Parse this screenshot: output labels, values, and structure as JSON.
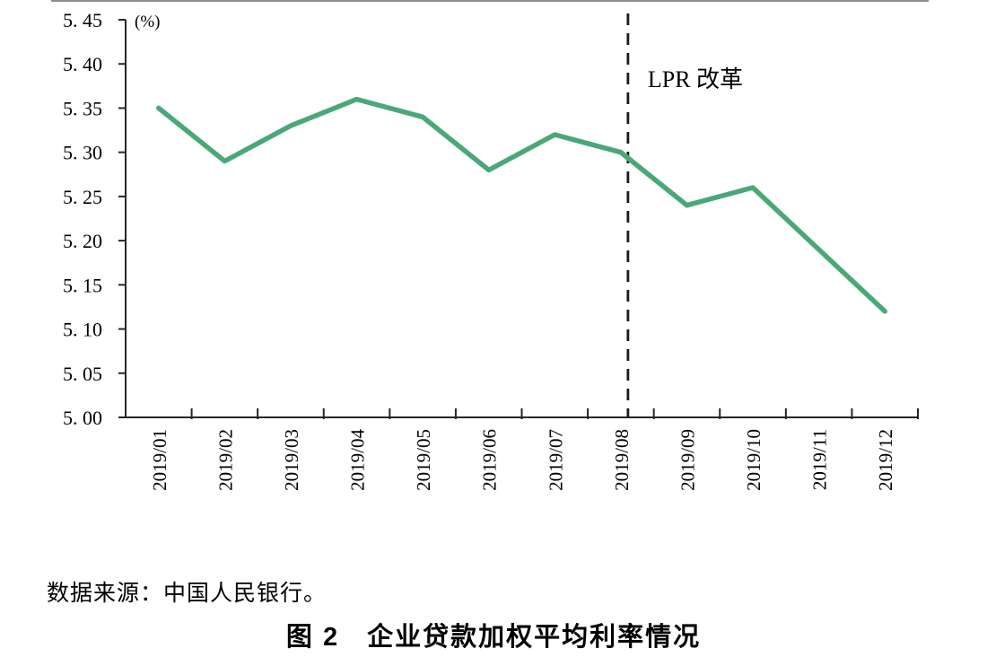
{
  "figure": {
    "source_note": "数据来源：中国人民银行。",
    "caption": "图 2　企业贷款加权平均利率情况"
  },
  "chart_data": {
    "type": "line",
    "title": "企业贷款加权平均利率情况",
    "unit_label": "(%)",
    "categories": [
      "2019/01",
      "2019/02",
      "2019/03",
      "2019/04",
      "2019/05",
      "2019/06",
      "2019/07",
      "2019/08",
      "2019/09",
      "2019/10",
      "2019/11",
      "2019/12"
    ],
    "series": [
      {
        "name": "企业贷款加权平均利率",
        "values": [
          5.35,
          5.29,
          5.33,
          5.36,
          5.34,
          5.28,
          5.32,
          5.3,
          5.24,
          5.26,
          5.19,
          5.12
        ],
        "color": "#4AA878"
      }
    ],
    "xlabel": "",
    "ylabel": "",
    "ylim": [
      5.0,
      5.45
    ],
    "ytick_step": 0.05,
    "ytick_labels": [
      "5. 00",
      "5. 05",
      "5. 10",
      "5. 15",
      "5. 20",
      "5. 25",
      "5. 30",
      "5. 35",
      "5. 40",
      "5. 45"
    ],
    "grid": false,
    "legend": "none",
    "axis_color": "#262626",
    "annotation": {
      "label": "LPR 改革",
      "category": "2019/08",
      "style": "vertical-dashed-line",
      "line_color": "#1a1a1a"
    }
  }
}
